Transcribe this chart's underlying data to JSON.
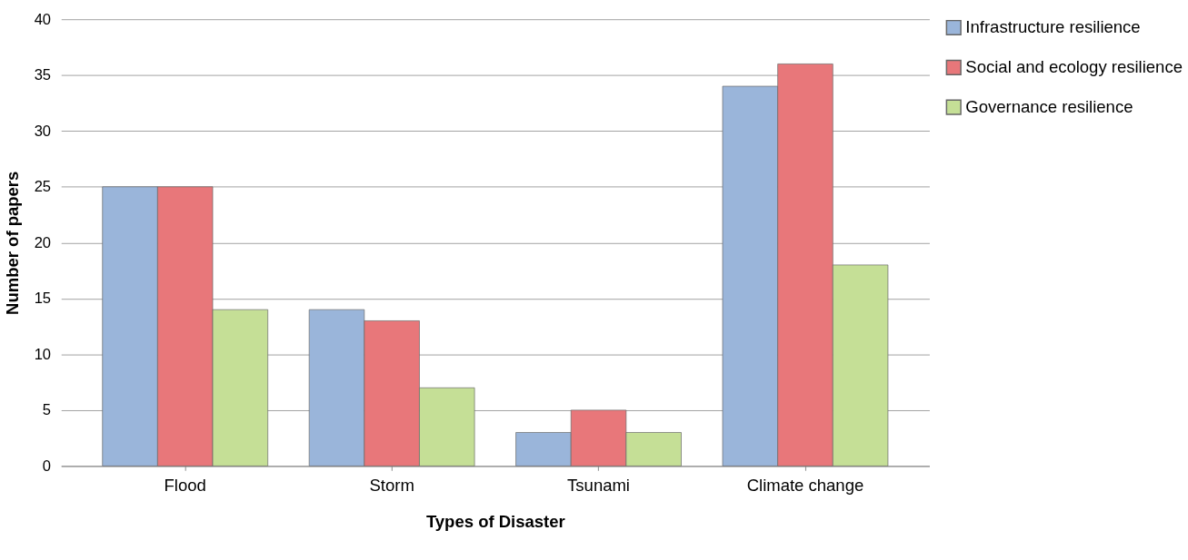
{
  "chart_data": {
    "type": "bar",
    "xlabel": "Types of Disaster",
    "ylabel": "Number of papers",
    "categories": [
      "Flood",
      "Storm",
      "Tsunami",
      "Climate change"
    ],
    "series": [
      {
        "name": "Infrastructure resilience",
        "color": "#9ab5da",
        "values": [
          25,
          14,
          3,
          34
        ]
      },
      {
        "name": "Social and ecology resilience",
        "color": "#e8777a",
        "values": [
          25,
          13,
          5,
          36
        ]
      },
      {
        "name": "Governance resilience",
        "color": "#c5df96",
        "values": [
          14,
          7,
          3,
          18
        ]
      }
    ],
    "ylim": [
      0,
      40
    ],
    "yticks": [
      0,
      5,
      10,
      15,
      20,
      25,
      30,
      35,
      40
    ],
    "grid": "y",
    "legend": "right"
  }
}
